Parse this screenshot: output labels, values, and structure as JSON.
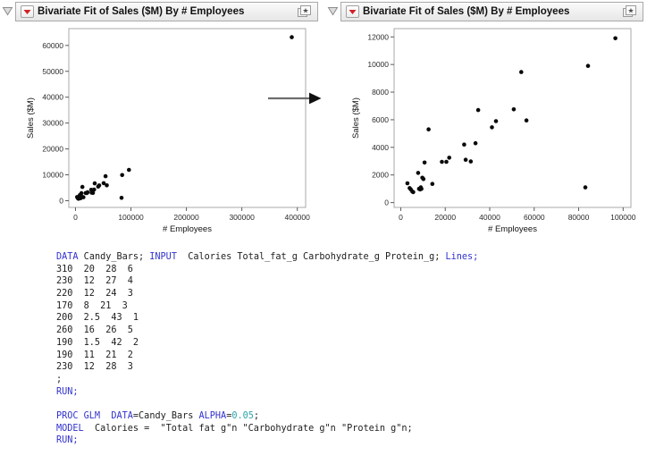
{
  "panels": [
    {
      "title": "Bivariate Fit of Sales ($M) By # Employees",
      "disclosure_state": "open"
    },
    {
      "title": "Bivariate Fit of Sales ($M) By # Employees",
      "disclosure_state": "open"
    }
  ],
  "annotation_arrow": {
    "direction": "right"
  },
  "chart_data": [
    {
      "type": "scatter",
      "view": "full-range",
      "title": "Bivariate Fit of Sales ($M) By # Employees",
      "xlabel": "# Employees",
      "ylabel": "Sales ($M)",
      "xlim": [
        0,
        400000
      ],
      "ylim": [
        0,
        60000
      ],
      "xticks": [
        0,
        100000,
        200000,
        300000,
        400000
      ],
      "yticks": [
        0,
        10000,
        20000,
        30000,
        40000,
        50000,
        60000
      ],
      "xrange": [
        -12000,
        415000
      ],
      "yrange": [
        -2600,
        66500
      ],
      "grid": false,
      "legend": "none",
      "marker": {
        "color": "#0a0a0a",
        "radius": 2.3
      },
      "points": [
        [
          3000,
          1400
        ],
        [
          4000,
          1050
        ],
        [
          4500,
          950
        ],
        [
          5200,
          800
        ],
        [
          5600,
          760
        ],
        [
          7800,
          2150
        ],
        [
          8200,
          1000
        ],
        [
          8700,
          950
        ],
        [
          9000,
          1100
        ],
        [
          9300,
          1000
        ],
        [
          9700,
          1800
        ],
        [
          10200,
          1700
        ],
        [
          10700,
          2900
        ],
        [
          12500,
          5300
        ],
        [
          14200,
          1350
        ],
        [
          18500,
          2950
        ],
        [
          20500,
          2950
        ],
        [
          21800,
          3250
        ],
        [
          28500,
          4200
        ],
        [
          29200,
          3100
        ],
        [
          31500,
          2980
        ],
        [
          33600,
          4300
        ],
        [
          34800,
          6700
        ],
        [
          41000,
          5450
        ],
        [
          42800,
          5900
        ],
        [
          50800,
          6750
        ],
        [
          54200,
          9450
        ],
        [
          56500,
          5950
        ],
        [
          83000,
          1100
        ],
        [
          84200,
          9900
        ],
        [
          96500,
          11900
        ],
        [
          390000,
          63200
        ]
      ]
    },
    {
      "type": "scatter",
      "view": "zoomed",
      "title": "Bivariate Fit of Sales ($M) By # Employees",
      "xlabel": "# Employees",
      "ylabel": "Sales ($M)",
      "xlim": [
        0,
        100000
      ],
      "ylim": [
        0,
        12000
      ],
      "xticks": [
        0,
        20000,
        40000,
        60000,
        80000,
        100000
      ],
      "yticks": [
        0,
        2000,
        4000,
        6000,
        8000,
        10000,
        12000
      ],
      "xrange": [
        -3000,
        103500
      ],
      "yrange": [
        -350,
        12600
      ],
      "grid": false,
      "legend": "none",
      "marker": {
        "color": "#0a0a0a",
        "radius": 2.3
      },
      "points": [
        [
          3000,
          1400
        ],
        [
          4000,
          1050
        ],
        [
          4500,
          950
        ],
        [
          5200,
          800
        ],
        [
          5600,
          760
        ],
        [
          7800,
          2150
        ],
        [
          8200,
          1000
        ],
        [
          8700,
          950
        ],
        [
          9000,
          1100
        ],
        [
          9300,
          1000
        ],
        [
          9700,
          1800
        ],
        [
          10200,
          1700
        ],
        [
          10700,
          2900
        ],
        [
          12500,
          5300
        ],
        [
          14200,
          1350
        ],
        [
          18500,
          2950
        ],
        [
          20500,
          2950
        ],
        [
          21800,
          3250
        ],
        [
          28500,
          4200
        ],
        [
          29200,
          3100
        ],
        [
          31500,
          2980
        ],
        [
          33600,
          4300
        ],
        [
          34800,
          6700
        ],
        [
          41000,
          5450
        ],
        [
          42800,
          5900
        ],
        [
          50800,
          6750
        ],
        [
          54200,
          9450
        ],
        [
          56500,
          5950
        ],
        [
          83000,
          1100
        ],
        [
          84200,
          9900
        ],
        [
          96500,
          11900
        ],
        [
          390000,
          63200
        ]
      ]
    }
  ],
  "code": {
    "language": "SAS",
    "colors": {
      "keyword": "#3232cd",
      "number": "#29a3ab",
      "text": "#1d1d1d"
    },
    "lines": [
      [
        {
          "c": "kw",
          "t": "DATA"
        },
        {
          "c": "tx",
          "t": " Candy_Bars; "
        },
        {
          "c": "kw",
          "t": "INPUT"
        },
        {
          "c": "tx",
          "t": "  Calories Total_fat_g Carbohydrate_g Protein_g; "
        },
        {
          "c": "kw",
          "t": "Lines;"
        }
      ],
      [
        {
          "c": "tx",
          "t": "310  20  28  6"
        }
      ],
      [
        {
          "c": "tx",
          "t": "230  12  27  4"
        }
      ],
      [
        {
          "c": "tx",
          "t": "220  12  24  3"
        }
      ],
      [
        {
          "c": "tx",
          "t": "170  8  21  3"
        }
      ],
      [
        {
          "c": "tx",
          "t": "200  2.5  43  1"
        }
      ],
      [
        {
          "c": "tx",
          "t": "260  16  26  5"
        }
      ],
      [
        {
          "c": "tx",
          "t": "190  1.5  42  2"
        }
      ],
      [
        {
          "c": "tx",
          "t": "190  11  21  2"
        }
      ],
      [
        {
          "c": "tx",
          "t": "230  12  28  3"
        }
      ],
      [
        {
          "c": "tx",
          "t": ";"
        }
      ],
      [
        {
          "c": "kw",
          "t": "RUN;"
        }
      ],
      [],
      [
        {
          "c": "kw",
          "t": "PROC GLM"
        },
        {
          "c": "tx",
          "t": "  "
        },
        {
          "c": "kw",
          "t": "DATA"
        },
        {
          "c": "tx",
          "t": "="
        },
        {
          "c": "tx",
          "t": "Candy_Bars "
        },
        {
          "c": "kw",
          "t": "ALPHA"
        },
        {
          "c": "tx",
          "t": "="
        },
        {
          "c": "num",
          "t": "0.05"
        },
        {
          "c": "tx",
          "t": ";"
        }
      ],
      [
        {
          "c": "kw",
          "t": "MODEL"
        },
        {
          "c": "tx",
          "t": "  Calories =  \"Total fat g\"n \"Carbohydrate g\"n \"Protein g\"n;"
        }
      ],
      [
        {
          "c": "kw",
          "t": "RUN;"
        }
      ]
    ]
  }
}
